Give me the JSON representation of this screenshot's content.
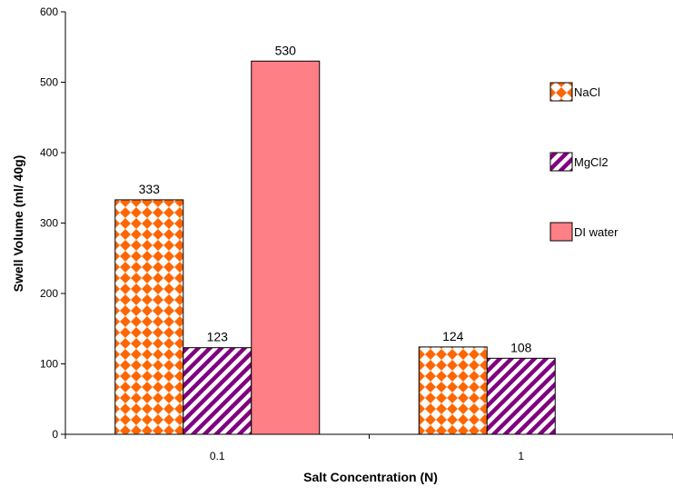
{
  "chart_data": {
    "type": "bar",
    "title": "",
    "xlabel": "Salt Concentration (N)",
    "ylabel": "Swell Volume (ml/ 40g)",
    "ylim": [
      0,
      600
    ],
    "yticks": [
      "0",
      "100",
      "200",
      "300",
      "400",
      "500",
      "600"
    ],
    "categories": [
      "0.1",
      "1"
    ],
    "series": [
      {
        "name": "NaCl",
        "values": [
          333,
          124
        ],
        "color": "#ff6600",
        "pattern": "diamond-checker"
      },
      {
        "name": "MgCl2",
        "values": [
          123,
          108
        ],
        "color": "#800080",
        "pattern": "diagonal-stripes"
      },
      {
        "name": "DI water",
        "values": [
          530,
          null
        ],
        "color": "#ff7f86",
        "pattern": "solid"
      }
    ],
    "data_labels": true,
    "grid": false,
    "legend_position": "right"
  }
}
